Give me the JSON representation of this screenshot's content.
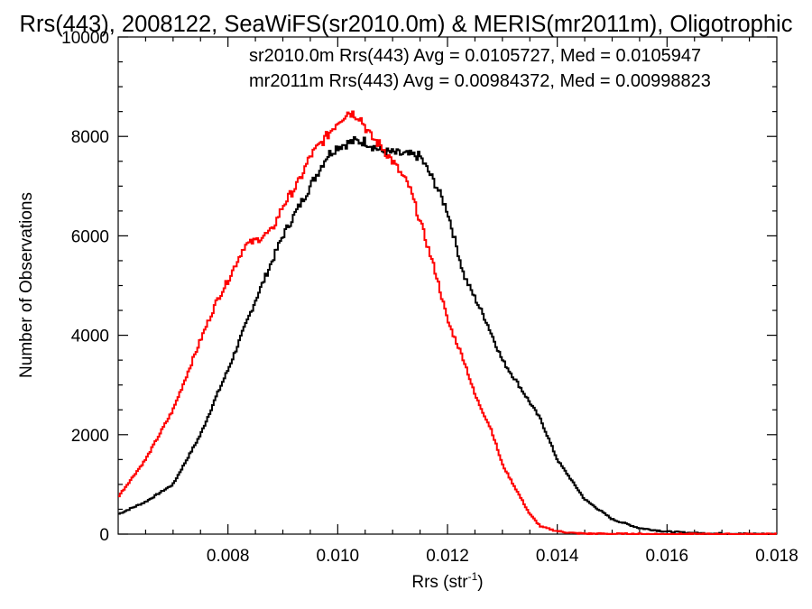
{
  "chart_data": {
    "type": "line",
    "title": "Rrs(443), 2008122, SeaWiFS(sr2010.0m) & MERIS(mr2011m), Oligotrophic",
    "xlabel": "Rrs (str",
    "xlabel_sup": "-1",
    "xlabel_end": ")",
    "ylabel": "Number of Observations",
    "xlim": [
      0.006,
      0.018
    ],
    "ylim": [
      0,
      10000
    ],
    "xticks": [
      0.008,
      0.01,
      0.012,
      0.014,
      0.016,
      0.018
    ],
    "xtick_labels": [
      "0.008",
      "0.010",
      "0.012",
      "0.014",
      "0.016",
      "0.018"
    ],
    "yticks": [
      0,
      2000,
      4000,
      6000,
      8000,
      10000
    ],
    "ytick_labels": [
      "0",
      "2000",
      "4000",
      "6000",
      "8000",
      "10000"
    ],
    "grid": false,
    "legend_placement": "top-right",
    "annotations": [
      {
        "text": "sr2010.0m Rrs(443) Avg = 0.0105727, Med = 0.0105947",
        "color": "#000000"
      },
      {
        "text": "mr2011m Rrs(443) Avg = 0.00984372, Med = 0.00998823",
        "color": "#ff0000"
      }
    ],
    "series": [
      {
        "color": "#000000",
        "x": [
          0.006,
          0.0065,
          0.007,
          0.0075,
          0.0078,
          0.008,
          0.0085,
          0.009,
          0.0095,
          0.0098,
          0.01,
          0.0103,
          0.0105,
          0.0108,
          0.0111,
          0.0115,
          0.0118,
          0.012,
          0.0123,
          0.0127,
          0.013,
          0.0133,
          0.0137,
          0.014,
          0.0145,
          0.015,
          0.0155,
          0.016,
          0.0165,
          0.017,
          0.0175,
          0.018
        ],
        "y": [
          400,
          650,
          1000,
          2000,
          2800,
          3300,
          4700,
          6000,
          7000,
          7600,
          7800,
          7900,
          7900,
          7700,
          7650,
          7600,
          7000,
          6500,
          5200,
          4300,
          3500,
          3000,
          2300,
          1500,
          700,
          300,
          120,
          50,
          20,
          10,
          5,
          0
        ]
      },
      {
        "color": "#ff0000",
        "x": [
          0.006,
          0.0065,
          0.007,
          0.0075,
          0.0078,
          0.008,
          0.0083,
          0.0085,
          0.0088,
          0.009,
          0.0093,
          0.0095,
          0.0098,
          0.01,
          0.0102,
          0.0104,
          0.0106,
          0.0108,
          0.011,
          0.0113,
          0.0115,
          0.0118,
          0.012,
          0.0123,
          0.0125,
          0.0128,
          0.013,
          0.0133,
          0.0135,
          0.0137,
          0.014,
          0.0143,
          0.0145,
          0.015,
          0.0155,
          0.016,
          0.017,
          0.018
        ],
        "y": [
          750,
          1500,
          2500,
          3900,
          4700,
          5100,
          5800,
          5900,
          6100,
          6600,
          7100,
          7600,
          8000,
          8300,
          8500,
          8400,
          8000,
          7800,
          7500,
          7000,
          6300,
          5200,
          4300,
          3500,
          2800,
          2100,
          1400,
          800,
          400,
          150,
          60,
          20,
          10,
          5,
          2,
          0,
          0,
          0
        ]
      }
    ]
  }
}
